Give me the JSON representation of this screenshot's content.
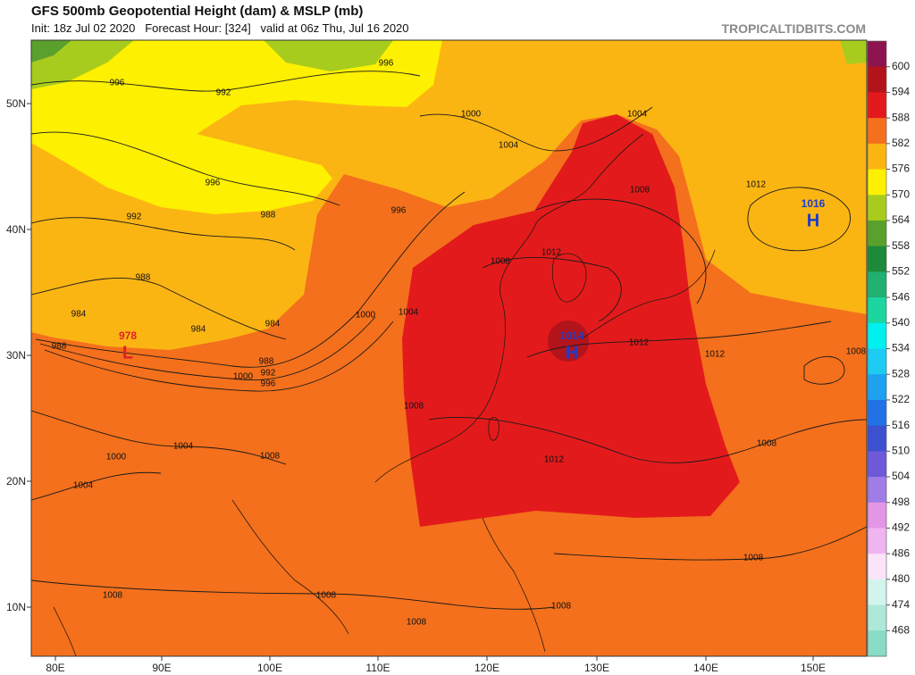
{
  "header": {
    "title": "GFS 500mb Geopotential Height (dam) & MSLP (mb)",
    "subtitle": "Init: 18z Jul 02 2020   Forecast Hour: [324]   valid at 06z Thu, Jul 16 2020",
    "site": "TROPICALTIDBITS.COM"
  },
  "axes": {
    "lon_labels": [
      "80E",
      "90E",
      "100E",
      "110E",
      "120E",
      "130E",
      "140E",
      "150E"
    ],
    "lat_labels": [
      "50N",
      "40N",
      "30N",
      "20N",
      "10N"
    ]
  },
  "colorbar": {
    "levels": [
      "600",
      "594",
      "588",
      "582",
      "576",
      "570",
      "564",
      "558",
      "552",
      "546",
      "540",
      "534",
      "528",
      "522",
      "516",
      "510",
      "504",
      "498",
      "492",
      "486",
      "480",
      "474",
      "468"
    ],
    "colors": [
      "#8e1450",
      "#b3141c",
      "#e31a1c",
      "#f4701c",
      "#fbb513",
      "#fdf000",
      "#a8cc1e",
      "#5aa02c",
      "#1c8a3a",
      "#20b070",
      "#1cd6a0",
      "#00f0f0",
      "#1ecbf2",
      "#1ea2f0",
      "#2072e6",
      "#3c50d0",
      "#6c5ad8",
      "#a07ce6",
      "#e496e6",
      "#f0b4f0",
      "#fae4fa",
      "#d2f4ec",
      "#aee8d8",
      "#88dcc6"
    ]
  },
  "contour_labels": [
    "996",
    "992",
    "996",
    "1000",
    "1004",
    "1004",
    "1008",
    "1012",
    "996",
    "992",
    "988",
    "996",
    "988",
    "984",
    "984",
    "984",
    "1000",
    "1004",
    "1008",
    "1012",
    "1008",
    "1012",
    "1012",
    "1008",
    "1008",
    "1012",
    "1000",
    "988",
    "992",
    "996",
    "1004",
    "1000",
    "1004",
    "1008",
    "1008",
    "1008",
    "1008",
    "1008",
    "1008",
    "988"
  ],
  "centers": [
    {
      "value": "1016",
      "letter": "H"
    },
    {
      "value": "1014",
      "letter": "H"
    },
    {
      "value": "978",
      "letter": "L"
    }
  ]
}
